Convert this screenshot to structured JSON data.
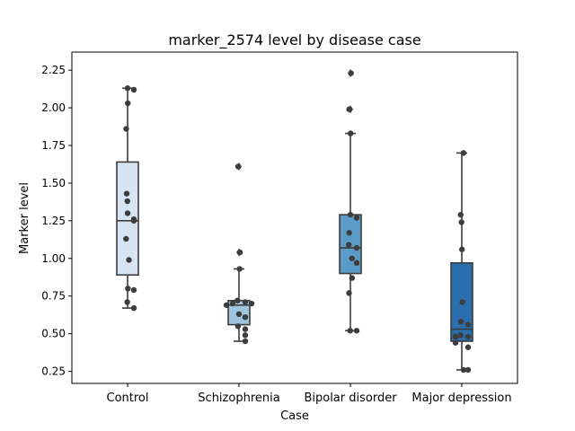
{
  "chart_data": {
    "type": "box",
    "title": "marker_2574 level by disease case",
    "xlabel": "Case",
    "ylabel": "Marker level",
    "categories": [
      "Control",
      "Schizophrenia",
      "Bipolar disorder",
      "Major depression"
    ],
    "ylim": [
      0.17,
      2.37
    ],
    "yticks": [
      0.25,
      0.5,
      0.75,
      1.0,
      1.25,
      1.5,
      1.75,
      2.0,
      2.25
    ],
    "ytick_labels": [
      "0.25",
      "0.50",
      "0.75",
      "1.00",
      "1.25",
      "1.50",
      "1.75",
      "2.00",
      "2.25"
    ],
    "grid": false,
    "series": [
      {
        "category": "Control",
        "color": "#d6e4f3",
        "q1": 0.89,
        "median": 1.25,
        "q3": 1.64,
        "whisker_low": 0.67,
        "whisker_high": 2.13,
        "outliers": [],
        "points": [
          2.13,
          2.12,
          2.03,
          1.86,
          1.43,
          1.38,
          1.3,
          1.26,
          1.25,
          1.13,
          0.99,
          0.8,
          0.79,
          0.71,
          0.67
        ]
      },
      {
        "category": "Schizophrenia",
        "color": "#9fc5de",
        "q1": 0.56,
        "median": 0.69,
        "q3": 0.72,
        "whisker_low": 0.45,
        "whisker_high": 0.93,
        "outliers": [
          1.61,
          1.04
        ],
        "points": [
          1.61,
          1.04,
          0.93,
          0.72,
          0.71,
          0.7,
          0.7,
          0.69,
          0.63,
          0.61,
          0.55,
          0.53,
          0.49,
          0.45
        ]
      },
      {
        "category": "Bipolar disorder",
        "color": "#5b9bc8",
        "q1": 0.9,
        "median": 1.07,
        "q3": 1.29,
        "whisker_low": 0.52,
        "whisker_high": 1.83,
        "outliers": [
          2.23,
          1.99
        ],
        "points": [
          2.23,
          1.99,
          1.83,
          1.29,
          1.27,
          1.17,
          1.09,
          1.07,
          1.0,
          0.97,
          0.87,
          0.77,
          0.52,
          0.52
        ]
      },
      {
        "category": "Major depression",
        "color": "#2a6ead",
        "q1": 0.45,
        "median": 0.53,
        "q3": 0.97,
        "whisker_low": 0.26,
        "whisker_high": 1.7,
        "outliers": [],
        "points": [
          1.7,
          1.29,
          1.24,
          1.06,
          0.71,
          0.58,
          0.56,
          0.49,
          0.48,
          0.48,
          0.44,
          0.41,
          0.26,
          0.26
        ]
      }
    ]
  }
}
